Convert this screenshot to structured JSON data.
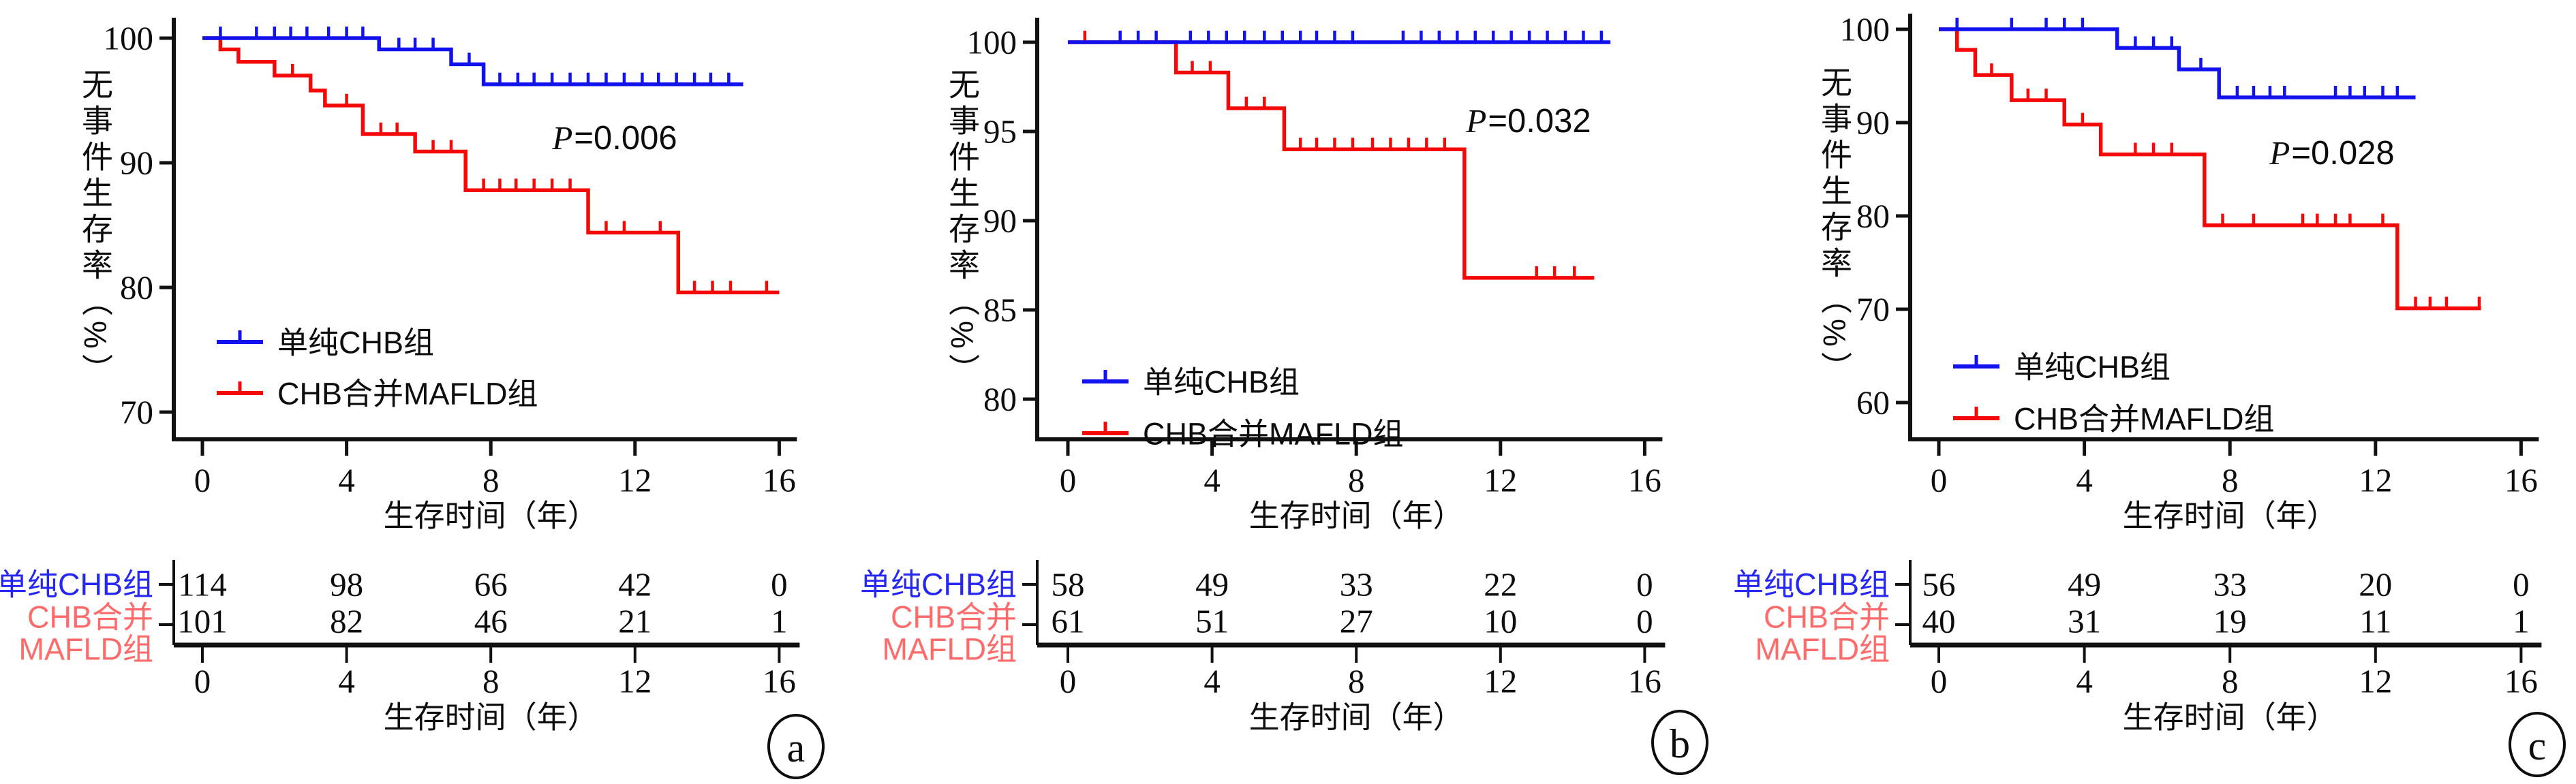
{
  "figure": {
    "y_axis_title": "无事件生存率（%）",
    "x_axis_title": "生存时间（年）",
    "legend": [
      {
        "label": "单纯CHB组"
      },
      {
        "label": "CHB合并MAFLD组"
      }
    ],
    "risk_row_labels": [
      {
        "lines": [
          "单纯CHB组"
        ]
      },
      {
        "lines": [
          "CHB合并",
          "MAFLD组"
        ]
      }
    ],
    "colors": {
      "chb": "#1212ee",
      "chb_mafld": "#f50808",
      "chb_label": "#2727f5",
      "chb_mafld_label": "#ff6b6b",
      "axis": "#111111"
    }
  },
  "chart_data": [
    {
      "type": "line",
      "subtype": "kaplan_meier_step",
      "panel_letter": "a",
      "xlabel": "生存时间（年）",
      "ylabel": "无事件生存率（%）",
      "xlim": [
        0,
        16.5
      ],
      "ylim": [
        68,
        101.5
      ],
      "x_ticks": [
        0,
        4,
        8,
        12,
        16
      ],
      "y_ticks": [
        100,
        90,
        80,
        70
      ],
      "p_label": {
        "symbol": "P",
        "rest": "=0.006"
      },
      "legend_position": "inside-bottom-left",
      "series": [
        {
          "name": "单纯CHB组",
          "color_key": "chb",
          "steps": [
            [
              0,
              100
            ],
            [
              4.9,
              99.1
            ],
            [
              6.9,
              97.9
            ],
            [
              7.8,
              96.3
            ]
          ],
          "end_x": 15.0,
          "censors": [
            0.5,
            1.5,
            2.0,
            2.45,
            2.9,
            3.5,
            4.0,
            4.45,
            5.45,
            5.9,
            6.4,
            7.4,
            8.25,
            8.75,
            9.2,
            9.7,
            10.2,
            10.7,
            11.2,
            11.7,
            12.2,
            12.65,
            13.15,
            13.65,
            14.1,
            14.6
          ]
        },
        {
          "name": "CHB合并MAFLD组",
          "color_key": "chb_mafld",
          "steps": [
            [
              0,
              100
            ],
            [
              0.5,
              99.1
            ],
            [
              1.0,
              98.1
            ],
            [
              2.0,
              97.0
            ],
            [
              3.0,
              95.8
            ],
            [
              3.4,
              94.6
            ],
            [
              4.45,
              92.3
            ],
            [
              5.9,
              90.9
            ],
            [
              7.3,
              87.8
            ],
            [
              10.7,
              84.4
            ],
            [
              13.2,
              79.6
            ]
          ],
          "end_x": 16.0,
          "censors": [
            2.5,
            4.0,
            4.95,
            5.4,
            6.4,
            6.9,
            7.8,
            8.25,
            8.7,
            9.2,
            9.7,
            10.2,
            11.2,
            11.7,
            12.7,
            13.65,
            14.15,
            14.65,
            15.65
          ]
        }
      ],
      "risk_table": {
        "rows": [
          {
            "values": [
              "114",
              "98",
              "66",
              "42",
              "0"
            ]
          },
          {
            "values": [
              "101",
              "82",
              "46",
              "21",
              "1"
            ]
          }
        ]
      }
    },
    {
      "type": "line",
      "subtype": "kaplan_meier_step",
      "panel_letter": "b",
      "xlabel": "生存时间（年）",
      "ylabel": "无事件生存率（%）",
      "xlim": [
        0,
        16.5
      ],
      "ylim": [
        78,
        101
      ],
      "x_ticks": [
        0,
        4,
        8,
        12,
        16
      ],
      "y_ticks": [
        100,
        95,
        90,
        85,
        80
      ],
      "p_label": {
        "symbol": "P",
        "rest": "=0.032"
      },
      "legend_position": "inside-bottom-left",
      "series": [
        {
          "name": "单纯CHB组",
          "color_key": "chb",
          "steps": [
            [
              0,
              100
            ]
          ],
          "end_x": 15.05,
          "censors": [
            1.45,
            1.95,
            2.45,
            3.4,
            3.9,
            4.4,
            4.9,
            5.45,
            5.95,
            6.45,
            6.9,
            7.4,
            7.9,
            9.3,
            9.8,
            10.3,
            10.8,
            11.3,
            11.8,
            12.3,
            12.8,
            13.3,
            13.8,
            14.3,
            14.8
          ]
        },
        {
          "name": "CHB合并MAFLD组",
          "color_key": "chb_mafld",
          "steps": [
            [
              0,
              100
            ],
            [
              3.0,
              98.3
            ],
            [
              4.45,
              96.3
            ],
            [
              6.0,
              94.0
            ],
            [
              11.0,
              86.8
            ]
          ],
          "end_x": 14.6,
          "censors": [
            0.47,
            3.45,
            3.95,
            4.95,
            5.45,
            6.45,
            6.9,
            7.4,
            7.9,
            8.45,
            8.95,
            9.45,
            9.95,
            10.45,
            13.0,
            13.5,
            14.05
          ]
        }
      ],
      "risk_table": {
        "rows": [
          {
            "values": [
              "58",
              "49",
              "33",
              "22",
              "0"
            ]
          },
          {
            "values": [
              "61",
              "51",
              "27",
              "10",
              "0"
            ]
          }
        ]
      }
    },
    {
      "type": "line",
      "subtype": "kaplan_meier_step",
      "panel_letter": "c",
      "xlabel": "生存时间（年）",
      "ylabel": "无事件生存率（%）",
      "xlim": [
        0,
        16.5
      ],
      "ylim": [
        56,
        101.5
      ],
      "x_ticks": [
        0,
        4,
        8,
        12,
        16
      ],
      "y_ticks": [
        100,
        90,
        80,
        70,
        60
      ],
      "p_label": {
        "symbol": "P",
        "rest": "=0.028"
      },
      "legend_position": "inside-bottom-left",
      "series": [
        {
          "name": "单纯CHB组",
          "color_key": "chb",
          "steps": [
            [
              0,
              100
            ],
            [
              4.9,
              98.0
            ],
            [
              6.6,
              95.7
            ],
            [
              7.7,
              92.7
            ]
          ],
          "end_x": 13.1,
          "censors": [
            0.5,
            2.0,
            2.95,
            3.45,
            3.95,
            5.4,
            5.9,
            6.4,
            7.2,
            8.2,
            8.65,
            9.1,
            9.5,
            10.9,
            11.3,
            11.7,
            12.2,
            12.6
          ]
        },
        {
          "name": "CHB合并MAFLD组",
          "color_key": "chb_mafld",
          "steps": [
            [
              0,
              100
            ],
            [
              0.5,
              97.8
            ],
            [
              1.0,
              95.1
            ],
            [
              2.0,
              92.4
            ],
            [
              3.45,
              89.8
            ],
            [
              4.45,
              86.6
            ],
            [
              7.3,
              79.0
            ],
            [
              12.6,
              70.1
            ]
          ],
          "end_x": 14.9,
          "censors": [
            1.45,
            2.45,
            2.95,
            3.95,
            5.4,
            5.9,
            6.4,
            7.8,
            8.65,
            10.0,
            10.4,
            10.9,
            11.3,
            12.2,
            13.1,
            13.5,
            13.95,
            14.85
          ]
        }
      ],
      "risk_table": {
        "rows": [
          {
            "values": [
              "56",
              "49",
              "33",
              "20",
              "0"
            ]
          },
          {
            "values": [
              "40",
              "31",
              "19",
              "11",
              "1"
            ]
          }
        ]
      }
    }
  ]
}
